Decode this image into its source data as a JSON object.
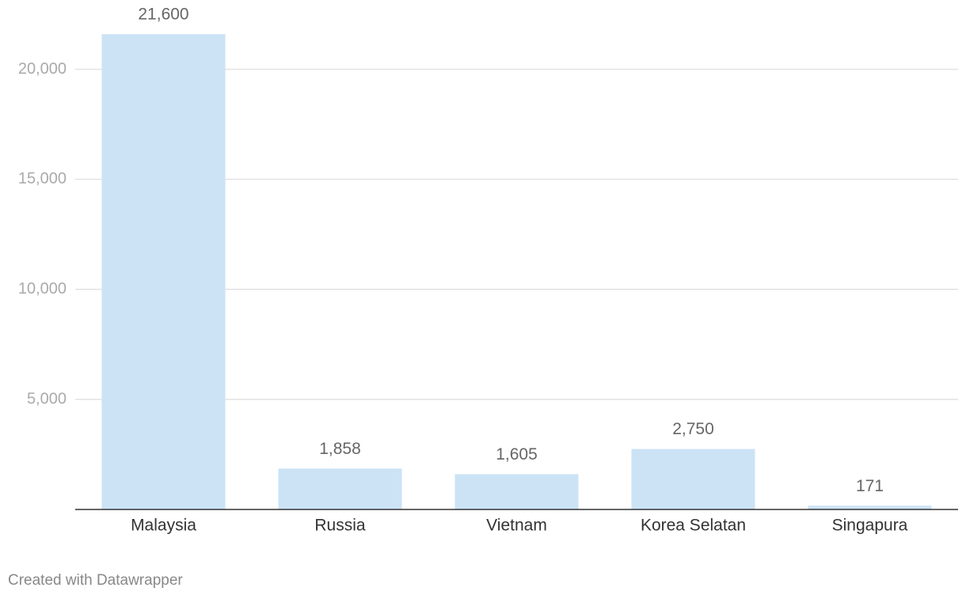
{
  "chart_data": {
    "type": "bar",
    "categories": [
      "Malaysia",
      "Russia",
      "Vietnam",
      "Korea Selatan",
      "Singapura"
    ],
    "values": [
      21600,
      1858,
      1605,
      2750,
      171
    ],
    "value_labels": [
      "21,600",
      "1,858",
      "1,605",
      "2,750",
      "171"
    ],
    "color": "#cce3f6",
    "ylim": [
      0,
      22000
    ],
    "yticks": [
      {
        "value": 5000,
        "label": "5,000"
      },
      {
        "value": 10000,
        "label": "10,000"
      },
      {
        "value": 15000,
        "label": "15,000"
      },
      {
        "value": 20000,
        "label": "20,000"
      }
    ],
    "grid": true
  },
  "credit": "Created with Datawrapper"
}
